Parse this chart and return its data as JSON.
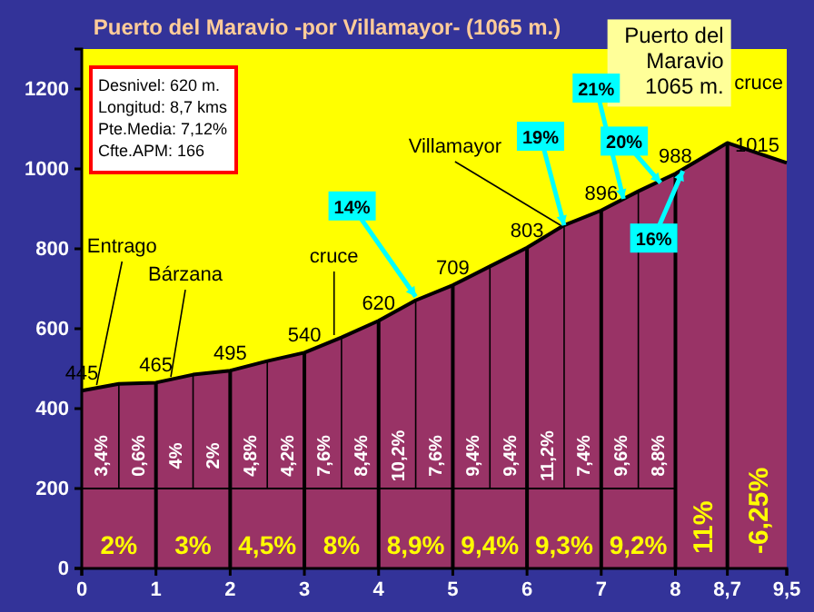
{
  "chart_data": {
    "type": "area",
    "title": "Puerto del Maravio -por Villamayor- (1065 m.)",
    "x": [
      0,
      0.5,
      1,
      1.5,
      2,
      2.5,
      3,
      3.5,
      4,
      4.5,
      5,
      5.5,
      6,
      6.5,
      7,
      7.5,
      8,
      8.7,
      9.5
    ],
    "series": [
      {
        "color": "#993366",
        "values": [
          445,
          462,
          465,
          485,
          495,
          519,
          540,
          578,
          620,
          671,
          709,
          756,
          803,
          859,
          896,
          944,
          988,
          1065,
          1015
        ],
        "value_labels": [
          "445",
          null,
          "465",
          null,
          "495",
          null,
          "540",
          null,
          "620",
          null,
          "709",
          null,
          "803",
          null,
          "896",
          null,
          "988",
          null,
          "1015"
        ]
      }
    ],
    "xlim": [
      0,
      9.5
    ],
    "xticks": [
      0,
      1,
      2,
      3,
      4,
      5,
      6,
      7,
      8,
      {
        "value": 8.7,
        "label": "8,7"
      },
      {
        "value": 9.5,
        "label": "9,5"
      }
    ],
    "ylim": [
      0,
      1300
    ],
    "yticks": [
      0,
      200,
      400,
      600,
      800,
      1000,
      1200
    ],
    "ref_lines": [
      {
        "axis": "y",
        "value": 200
      },
      {
        "axis": "x",
        "value": 0.5
      },
      {
        "axis": "x",
        "value": 1
      },
      {
        "axis": "x",
        "value": 1.5
      },
      {
        "axis": "x",
        "value": 2
      },
      {
        "axis": "x",
        "value": 2.5
      },
      {
        "axis": "x",
        "value": 3
      },
      {
        "axis": "x",
        "value": 3.5
      },
      {
        "axis": "x",
        "value": 4
      },
      {
        "axis": "x",
        "value": 4.5
      },
      {
        "axis": "x",
        "value": 5
      },
      {
        "axis": "x",
        "value": 5.5
      },
      {
        "axis": "x",
        "value": 6
      },
      {
        "axis": "x",
        "value": 6.5
      },
      {
        "axis": "x",
        "value": 7
      },
      {
        "axis": "x",
        "value": 7.5
      },
      {
        "axis": "x",
        "value": 8
      },
      {
        "axis": "x",
        "value": 8.7
      }
    ],
    "annotations": [
      "Desnivel: 620 m.",
      "Longitud: 8,7 kms",
      "Pte.Media: 7,12%",
      "Cfte.APM: 166",
      "3,4%",
      "0,6%",
      "4%",
      "2%",
      "4,8%",
      "4,2%",
      "7,6%",
      "8,4%",
      "10,2%",
      "7,6%",
      "9,4%",
      "9,4%",
      "11,2%",
      "7,4%",
      "9,6%",
      "8,8%",
      "2%",
      "3%",
      "4,5%",
      "8%",
      "8,9%",
      "9,4%",
      "9,3%",
      "9,2%",
      "11%",
      "-6,25%",
      "cruce",
      {
        "text": "Entrago",
        "x": 0.2,
        "y": 450
      },
      {
        "text": "Bárzana",
        "x": 1.2,
        "y": 470
      },
      {
        "text": "cruce",
        "x": 3.4,
        "y": 575
      },
      {
        "text": "Villamayor",
        "x": 6.45,
        "y": 850
      },
      {
        "text": "Puerto del Maravio 1065 m.",
        "x": 8.7,
        "y": 1065
      },
      {
        "text": "14%",
        "x": 4.5,
        "y": 680
      },
      {
        "text": "19%",
        "x": 6.5,
        "y": 859
      },
      {
        "text": "21%",
        "x": 7.3,
        "y": 925
      },
      {
        "text": "20%",
        "x": 7.8,
        "y": 965
      },
      {
        "text": "16%",
        "x": 8.1,
        "y": 995
      }
    ]
  }
}
